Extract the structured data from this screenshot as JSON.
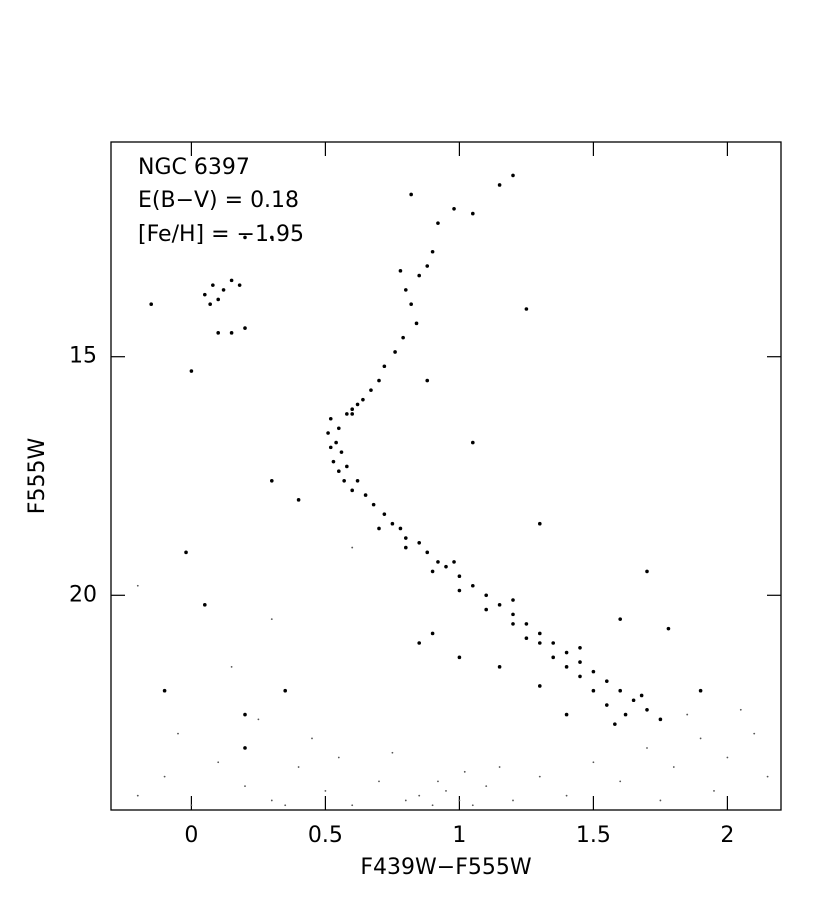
{
  "chart_data": {
    "type": "scatter",
    "x_label": "F439W−F555W",
    "y_label": "F555W",
    "annotations": [
      "NGC 6397",
      "E(B−V) = 0.18",
      "[Fe/H] = −1.95"
    ],
    "xlim": [
      -0.3,
      2.2
    ],
    "xticks": [
      0,
      0.5,
      1,
      1.5,
      2
    ],
    "ylim": [
      24.5,
      10.5
    ],
    "yticks": [
      15,
      20
    ],
    "series": [
      {
        "color": "#000000",
        "x": [
          0.78,
          0.8,
          0.82,
          0.85,
          0.88,
          0.9,
          0.84,
          0.79,
          0.76,
          0.72,
          0.7,
          0.67,
          0.64,
          0.62,
          0.6,
          0.58,
          0.82,
          0.92,
          0.98,
          1.15,
          1.2,
          1.05,
          0.05,
          0.08,
          0.1,
          0.12,
          0.15,
          0.07,
          0.1,
          0.15,
          0.2,
          0.18,
          0.52,
          0.51,
          0.52,
          0.53,
          0.55,
          0.57,
          0.6,
          0.55,
          0.54,
          0.56,
          0.58,
          0.6,
          0.65,
          0.62,
          0.68,
          0.72,
          0.75,
          0.78,
          0.8,
          0.85,
          0.88,
          0.92,
          0.95,
          1.0,
          1.05,
          1.1,
          1.15,
          1.2,
          1.25,
          1.3,
          1.35,
          1.4,
          1.45,
          1.5,
          1.55,
          1.6,
          1.65,
          1.7,
          1.62,
          1.55,
          1.5,
          1.45,
          1.4,
          1.35,
          1.3,
          1.25,
          1.2,
          1.1,
          1.0,
          0.9,
          0.8,
          0.7,
          1.75,
          1.58,
          1.68,
          1.45,
          1.2,
          0.98,
          0.9,
          1.0,
          1.15,
          0.85,
          1.3,
          1.4,
          1.6,
          1.7,
          1.78,
          1.9,
          0.3,
          0.4,
          1.05,
          1.3,
          1.25,
          0.88,
          0.0,
          -0.02,
          0.05,
          -0.1,
          0.2,
          0.35,
          0.2,
          -0.15,
          0.3,
          0.2
        ],
        "values": [
          13.2,
          13.6,
          13.9,
          13.3,
          13.1,
          12.8,
          14.3,
          14.6,
          14.9,
          15.2,
          15.5,
          15.7,
          15.9,
          16.0,
          16.1,
          16.2,
          11.6,
          12.2,
          11.9,
          11.4,
          11.2,
          12.0,
          13.7,
          13.5,
          13.8,
          13.6,
          13.4,
          13.9,
          14.5,
          14.5,
          14.4,
          13.5,
          16.3,
          16.6,
          16.9,
          17.2,
          17.4,
          17.6,
          17.8,
          16.5,
          16.8,
          17.0,
          17.3,
          16.2,
          17.9,
          17.6,
          18.1,
          18.3,
          18.5,
          18.6,
          18.8,
          18.9,
          19.1,
          19.3,
          19.4,
          19.6,
          19.8,
          20.0,
          20.2,
          20.4,
          20.6,
          20.8,
          21.0,
          21.2,
          21.4,
          21.6,
          21.8,
          22.0,
          22.2,
          22.4,
          22.5,
          22.3,
          22.0,
          21.7,
          21.5,
          21.3,
          21.0,
          20.9,
          20.6,
          20.3,
          19.9,
          19.5,
          19.0,
          18.6,
          22.6,
          22.7,
          22.1,
          21.1,
          20.1,
          19.3,
          20.8,
          21.3,
          21.5,
          21.0,
          21.9,
          22.5,
          20.5,
          19.5,
          20.7,
          22.0,
          17.6,
          18.0,
          16.8,
          18.5,
          14.0,
          15.5,
          15.3,
          19.1,
          20.2,
          22.0,
          23.2,
          22.0,
          22.5,
          13.9,
          12.5,
          12.5
        ]
      },
      {
        "color": "#555555",
        "x": [
          -0.2,
          -0.1,
          0.0,
          0.1,
          0.2,
          0.3,
          0.4,
          0.5,
          0.6,
          0.7,
          0.8,
          0.85,
          0.9,
          0.95,
          1.0,
          1.05,
          1.1,
          1.2,
          1.3,
          1.4,
          1.5,
          1.6,
          1.7,
          1.8,
          1.9,
          2.0,
          2.1,
          2.15,
          1.95,
          1.75,
          0.45,
          0.25,
          -0.05,
          0.15,
          0.6,
          0.3,
          -0.2,
          1.85,
          2.05,
          0.75,
          1.15,
          0.55,
          0.92,
          1.02,
          0.35
        ],
        "values": [
          24.2,
          23.8,
          24.4,
          23.5,
          24.0,
          24.3,
          23.6,
          24.1,
          24.4,
          23.9,
          24.3,
          24.2,
          24.4,
          24.1,
          24.3,
          24.4,
          24.0,
          24.3,
          23.8,
          24.2,
          23.5,
          23.9,
          23.2,
          23.6,
          23.0,
          23.4,
          22.9,
          23.8,
          24.1,
          24.3,
          23.0,
          22.6,
          22.9,
          21.5,
          19.0,
          20.5,
          19.8,
          22.5,
          22.4,
          23.3,
          23.6,
          23.4,
          23.9,
          23.7,
          24.4
        ]
      }
    ]
  }
}
